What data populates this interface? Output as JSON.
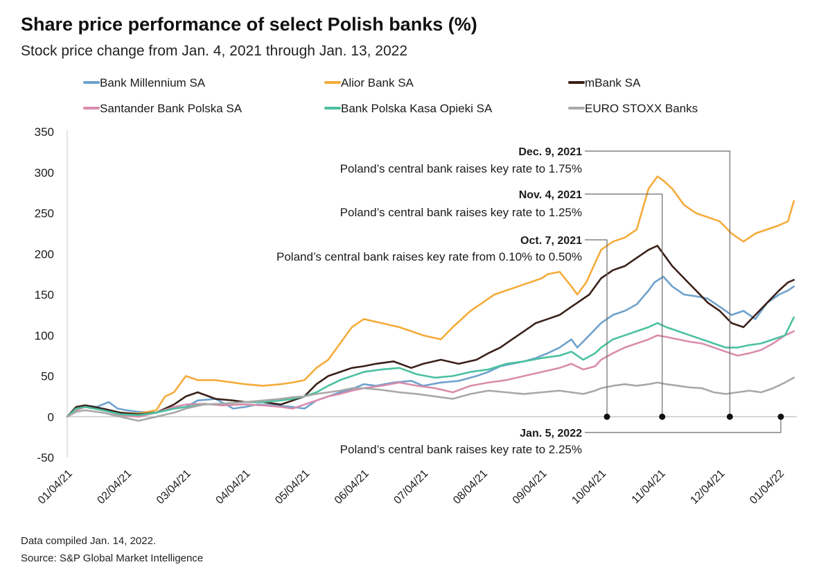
{
  "chart_data": {
    "type": "line",
    "title": "Share price performance of select Polish banks (%)",
    "subtitle": "Stock price change from Jan. 4, 2021 through Jan. 13, 2022",
    "xlabel": "",
    "ylabel": "",
    "ylim": [
      -50,
      350
    ],
    "yticks": [
      -50,
      0,
      50,
      100,
      150,
      200,
      250,
      300,
      350
    ],
    "x_range": [
      0,
      12.3
    ],
    "xtick_labels": [
      "01/04/21",
      "02/04/21",
      "03/04/21",
      "04/04/21",
      "05/04/21",
      "06/04/21",
      "07/04/21",
      "08/04/21",
      "09/04/21",
      "10/04/21",
      "11/04/21",
      "12/04/21",
      "01/04/22"
    ],
    "legend": "top",
    "series": [
      {
        "name": "Bank Millennium SA",
        "color": "#6ea1cc",
        "x": [
          0,
          0.15,
          0.3,
          0.5,
          0.7,
          0.85,
          1.0,
          1.2,
          1.5,
          1.8,
          2.0,
          2.2,
          2.5,
          2.8,
          3.0,
          3.2,
          3.5,
          3.8,
          4.0,
          4.2,
          4.4,
          4.6,
          4.8,
          5.0,
          5.2,
          5.5,
          5.8,
          6.0,
          6.3,
          6.6,
          6.9,
          7.1,
          7.3,
          7.5,
          7.7,
          7.9,
          8.1,
          8.3,
          8.5,
          8.6,
          8.8,
          9.0,
          9.2,
          9.4,
          9.6,
          9.8,
          9.9,
          10.05,
          10.2,
          10.4,
          10.6,
          10.8,
          11.0,
          11.2,
          11.4,
          11.6,
          11.8,
          12.0,
          12.15,
          12.25
        ],
        "y": [
          0,
          10,
          14,
          12,
          18,
          10,
          8,
          6,
          5,
          10,
          12,
          20,
          22,
          10,
          12,
          15,
          14,
          12,
          10,
          20,
          25,
          30,
          34,
          40,
          38,
          42,
          44,
          38,
          42,
          44,
          50,
          55,
          62,
          65,
          68,
          72,
          78,
          85,
          95,
          85,
          100,
          115,
          125,
          130,
          138,
          155,
          165,
          172,
          160,
          150,
          148,
          145,
          135,
          125,
          130,
          120,
          140,
          150,
          155,
          160
        ]
      },
      {
        "name": "Alior Bank SA",
        "color": "#f5ab3a",
        "x": [
          0,
          0.15,
          0.3,
          0.6,
          0.9,
          1.2,
          1.5,
          1.65,
          1.8,
          2.0,
          2.2,
          2.5,
          2.8,
          3.0,
          3.3,
          3.6,
          3.8,
          4.0,
          4.2,
          4.4,
          4.6,
          4.8,
          5.0,
          5.3,
          5.6,
          5.8,
          6.0,
          6.3,
          6.5,
          6.8,
          7.0,
          7.2,
          7.4,
          7.6,
          7.8,
          8.0,
          8.1,
          8.3,
          8.5,
          8.6,
          8.75,
          9.0,
          9.2,
          9.4,
          9.6,
          9.8,
          9.95,
          10.05,
          10.2,
          10.4,
          10.6,
          10.8,
          11.0,
          11.2,
          11.4,
          11.6,
          11.8,
          12.0,
          12.15,
          12.25
        ],
        "y": [
          0,
          10,
          12,
          8,
          5,
          4,
          8,
          25,
          30,
          50,
          45,
          45,
          42,
          40,
          38,
          40,
          42,
          45,
          60,
          70,
          90,
          110,
          120,
          115,
          110,
          105,
          100,
          95,
          110,
          130,
          140,
          150,
          155,
          160,
          165,
          170,
          175,
          178,
          160,
          150,
          165,
          205,
          215,
          220,
          230,
          280,
          295,
          290,
          280,
          260,
          250,
          245,
          240,
          225,
          215,
          225,
          230,
          235,
          240,
          265
        ]
      },
      {
        "name": "mBank SA",
        "color": "#3a2019",
        "x": [
          0,
          0.15,
          0.3,
          0.6,
          0.9,
          1.2,
          1.5,
          1.8,
          2.0,
          2.2,
          2.5,
          2.8,
          3.0,
          3.3,
          3.6,
          3.8,
          4.0,
          4.2,
          4.4,
          4.6,
          4.8,
          5.0,
          5.2,
          5.5,
          5.8,
          6.0,
          6.3,
          6.6,
          6.9,
          7.1,
          7.3,
          7.5,
          7.7,
          7.9,
          8.1,
          8.3,
          8.5,
          8.6,
          8.8,
          9.0,
          9.2,
          9.4,
          9.6,
          9.8,
          9.95,
          10.05,
          10.2,
          10.4,
          10.6,
          10.8,
          11.0,
          11.2,
          11.4,
          11.6,
          11.8,
          12.0,
          12.15,
          12.25
        ],
        "y": [
          0,
          12,
          14,
          10,
          5,
          3,
          5,
          15,
          25,
          30,
          22,
          20,
          18,
          18,
          15,
          20,
          25,
          40,
          50,
          55,
          60,
          62,
          65,
          68,
          60,
          65,
          70,
          65,
          70,
          78,
          85,
          95,
          105,
          115,
          120,
          125,
          135,
          140,
          150,
          170,
          180,
          185,
          195,
          205,
          210,
          200,
          185,
          170,
          155,
          140,
          130,
          115,
          110,
          125,
          140,
          155,
          165,
          168
        ]
      },
      {
        "name": "Santander Bank Polska SA",
        "color": "#d98cac",
        "x": [
          0,
          0.15,
          0.3,
          0.6,
          0.9,
          1.2,
          1.5,
          1.8,
          2.0,
          2.3,
          2.6,
          3.0,
          3.3,
          3.6,
          3.8,
          4.0,
          4.2,
          4.4,
          4.6,
          4.8,
          5.0,
          5.3,
          5.6,
          5.9,
          6.2,
          6.5,
          6.8,
          7.1,
          7.4,
          7.7,
          8.0,
          8.3,
          8.5,
          8.7,
          8.9,
          9.0,
          9.2,
          9.4,
          9.6,
          9.8,
          9.95,
          10.1,
          10.3,
          10.5,
          10.7,
          10.9,
          11.1,
          11.3,
          11.5,
          11.7,
          11.9,
          12.1,
          12.25
        ],
        "y": [
          0,
          8,
          12,
          8,
          2,
          0,
          5,
          12,
          15,
          16,
          14,
          15,
          14,
          12,
          10,
          15,
          20,
          25,
          28,
          32,
          35,
          38,
          42,
          38,
          35,
          30,
          38,
          42,
          45,
          50,
          55,
          60,
          65,
          58,
          62,
          70,
          78,
          85,
          90,
          95,
          100,
          98,
          95,
          92,
          90,
          85,
          80,
          75,
          78,
          82,
          90,
          100,
          105
        ]
      },
      {
        "name": "Bank Polska Kasa Opieki SA",
        "color": "#4ac1a0",
        "x": [
          0,
          0.15,
          0.3,
          0.6,
          0.9,
          1.2,
          1.5,
          1.8,
          2.0,
          2.3,
          2.6,
          3.0,
          3.3,
          3.6,
          3.8,
          4.0,
          4.2,
          4.4,
          4.6,
          4.8,
          5.0,
          5.3,
          5.6,
          5.9,
          6.2,
          6.5,
          6.8,
          7.1,
          7.4,
          7.7,
          8.0,
          8.3,
          8.5,
          8.7,
          8.9,
          9.0,
          9.2,
          9.4,
          9.6,
          9.8,
          9.95,
          10.1,
          10.3,
          10.5,
          10.7,
          10.9,
          11.1,
          11.3,
          11.5,
          11.7,
          11.9,
          12.1,
          12.25
        ],
        "y": [
          0,
          10,
          12,
          8,
          3,
          2,
          5,
          10,
          12,
          15,
          16,
          18,
          18,
          20,
          22,
          25,
          30,
          38,
          45,
          50,
          55,
          58,
          60,
          52,
          48,
          50,
          55,
          58,
          65,
          68,
          72,
          75,
          80,
          70,
          78,
          85,
          95,
          100,
          105,
          110,
          115,
          110,
          105,
          100,
          95,
          90,
          85,
          85,
          88,
          90,
          95,
          100,
          122
        ]
      },
      {
        "name": "EURO STOXX Banks",
        "color": "#a8a8a8",
        "x": [
          0,
          0.15,
          0.3,
          0.6,
          0.9,
          1.2,
          1.5,
          1.8,
          2.0,
          2.3,
          2.6,
          3.0,
          3.3,
          3.6,
          3.8,
          4.0,
          4.2,
          4.4,
          4.6,
          4.8,
          5.0,
          5.3,
          5.6,
          5.9,
          6.2,
          6.5,
          6.8,
          7.1,
          7.4,
          7.7,
          8.0,
          8.3,
          8.5,
          8.7,
          8.9,
          9.0,
          9.2,
          9.4,
          9.6,
          9.8,
          9.95,
          10.1,
          10.3,
          10.5,
          10.7,
          10.9,
          11.1,
          11.3,
          11.5,
          11.7,
          11.9,
          12.1,
          12.25
        ],
        "y": [
          0,
          6,
          8,
          5,
          0,
          -5,
          0,
          5,
          10,
          15,
          16,
          18,
          20,
          22,
          24,
          25,
          28,
          30,
          32,
          35,
          35,
          33,
          30,
          28,
          25,
          22,
          28,
          32,
          30,
          28,
          30,
          32,
          30,
          28,
          32,
          35,
          38,
          40,
          38,
          40,
          42,
          40,
          38,
          36,
          35,
          30,
          28,
          30,
          32,
          30,
          35,
          42,
          48
        ]
      }
    ],
    "annotations": [
      {
        "date": "Oct. 7, 2021",
        "text": "Poland’s central bank raises key rate from 0.10% to 0.50%",
        "x": 9.1
      },
      {
        "date": "Nov. 4, 2021",
        "text": "Poland’s central bank raises key rate to 1.25%",
        "x": 10.03
      },
      {
        "date": "Dec. 9, 2021",
        "text": "Poland’s central bank raises key rate to 1.75%",
        "x": 11.17
      },
      {
        "date": "Jan. 5, 2022",
        "text": "Poland’s central bank raises key rate to 2.25%",
        "x": 12.03
      }
    ]
  },
  "footer": {
    "compiled": "Data compiled Jan. 14, 2022.",
    "source": "Source: S&P Global Market Intelligence"
  }
}
